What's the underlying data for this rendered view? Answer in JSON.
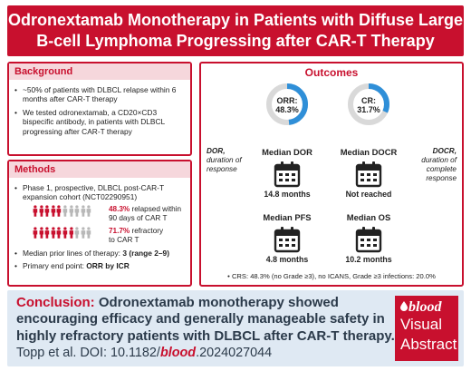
{
  "title": {
    "line1": "Odronextamab Monotherapy in Patients with Diffuse Large",
    "line2": "B-cell Lymphoma Progressing after CAR-T Therapy"
  },
  "background": {
    "heading": "Background",
    "bullet1": "~50% of patients with DLBCL relapse within 6 months after CAR-T therapy",
    "bullet2": "We tested odronextamab, a CD20×CD3 bispecific antibody, in patients with DLBCL progressing after CAR-T therapy"
  },
  "methods": {
    "heading": "Methods",
    "bullet1": "Phase 1, prospective, DLBCL post-CAR-T expansion cohort (NCT02290951)",
    "stat1_pct": "48.3%",
    "stat1_text_a": " relapsed within",
    "stat1_text_b": "90 days of CAR T",
    "stat2_pct": "71.7%",
    "stat2_text_a": " refractory",
    "stat2_text_b": "to CAR T",
    "stat1_fraction": 0.483,
    "stat2_fraction": 0.717,
    "bullet2_label": "Median prior lines of therapy: ",
    "bullet2_value": "3 (range 2–9)",
    "bullet3_label": "Primary end point: ",
    "bullet3_value": "ORR by ICR"
  },
  "outcomes": {
    "heading": "Outcomes",
    "orr_label": "ORR:",
    "orr_value": "48.3%",
    "orr_fraction": 0.483,
    "cr_label": "CR:",
    "cr_value": "31.7%",
    "cr_fraction": 0.317,
    "dor_title": "Median DOR",
    "dor_value": "14.8 months",
    "docr_title": "Median DOCR",
    "docr_value": "Not reached",
    "pfs_title": "Median PFS",
    "pfs_value": "4.8 months",
    "os_title": "Median OS",
    "os_value": "10.2 months",
    "dor_abbr": "DOR,",
    "dor_def_1": "duration of",
    "dor_def_2": "response",
    "docr_abbr": "DOCR,",
    "docr_def_1": "duration of",
    "docr_def_2": "complete",
    "docr_def_3": "response",
    "safety": "CRS: 48.3% (no Grade ≥3), no ICANS, Grade ≥3 infections: 20.0%"
  },
  "conclusion": {
    "lead": "Conclusion:",
    "body1": " Odronextamab monotherapy showed",
    "line2": "encouraging efficacy and generally manageable safety in",
    "line3": "highly refractory patients with DLBCL after CAR-T therapy.",
    "cite_prefix": "Topp et al. DOI: 10.1182/",
    "cite_journal": "blood",
    "cite_suffix": ".2024027044"
  },
  "logo": {
    "word1": "blood",
    "word2": "Visual",
    "word3": "Abstract"
  },
  "colors": {
    "brand_red": "#c8102e",
    "donut_blue": "#2f8fd8",
    "conclusion_bg": "#dfe9f3"
  }
}
